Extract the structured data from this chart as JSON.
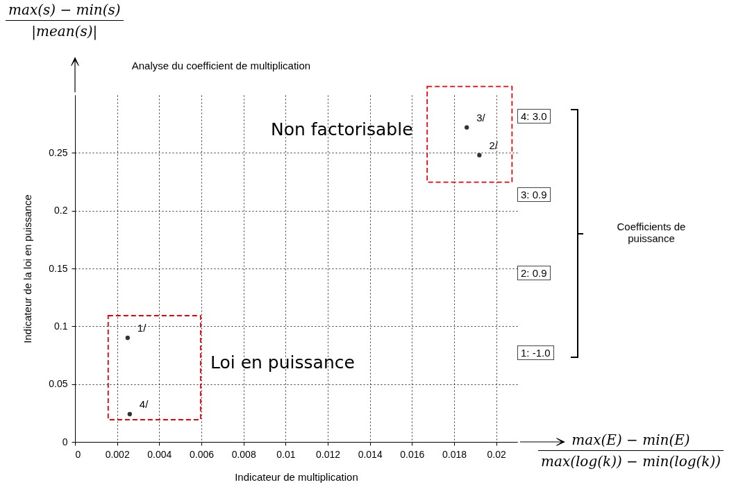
{
  "chart_data": {
    "type": "scatter",
    "title": "Analyse du coefficient de multiplication",
    "xlabel": "Indicateur de multiplication",
    "ylabel": "Indicateur de la loi en puissance",
    "x": [
      0.0025,
      0.0192,
      0.0186,
      0.0026
    ],
    "series": [
      {
        "color": "#333333",
        "values": [
          0.09,
          0.248,
          0.272,
          0.024
        ]
      }
    ],
    "xlim": [
      0,
      0.021
    ],
    "ylim": [
      0,
      0.3
    ],
    "xticks": [
      0,
      0.002,
      0.004,
      0.006,
      0.008,
      0.01,
      0.012,
      0.014,
      0.016,
      0.018,
      0.02
    ],
    "yticks": [
      0,
      0.05,
      0.1,
      0.15,
      0.2,
      0.25
    ],
    "grid": true,
    "marker": "circle",
    "annotations": [
      {
        "text": "1/",
        "x": 0.0025,
        "y": 0.09
      },
      {
        "text": "2/",
        "x": 0.0192,
        "y": 0.248
      },
      {
        "text": "3/",
        "x": 0.0186,
        "y": 0.272
      },
      {
        "text": "4/",
        "x": 0.0026,
        "y": 0.024
      },
      "Non factorisable",
      "Loi en puissance",
      "4: 3.0",
      "3: 0.9",
      "2: 0.9",
      "1: -1.0",
      "Coefficients de puissance",
      "max(s) − min(s)",
      "|mean(s)|",
      "max(E) − min(E)",
      "max(log(k)) − min(log(k))"
    ]
  }
}
